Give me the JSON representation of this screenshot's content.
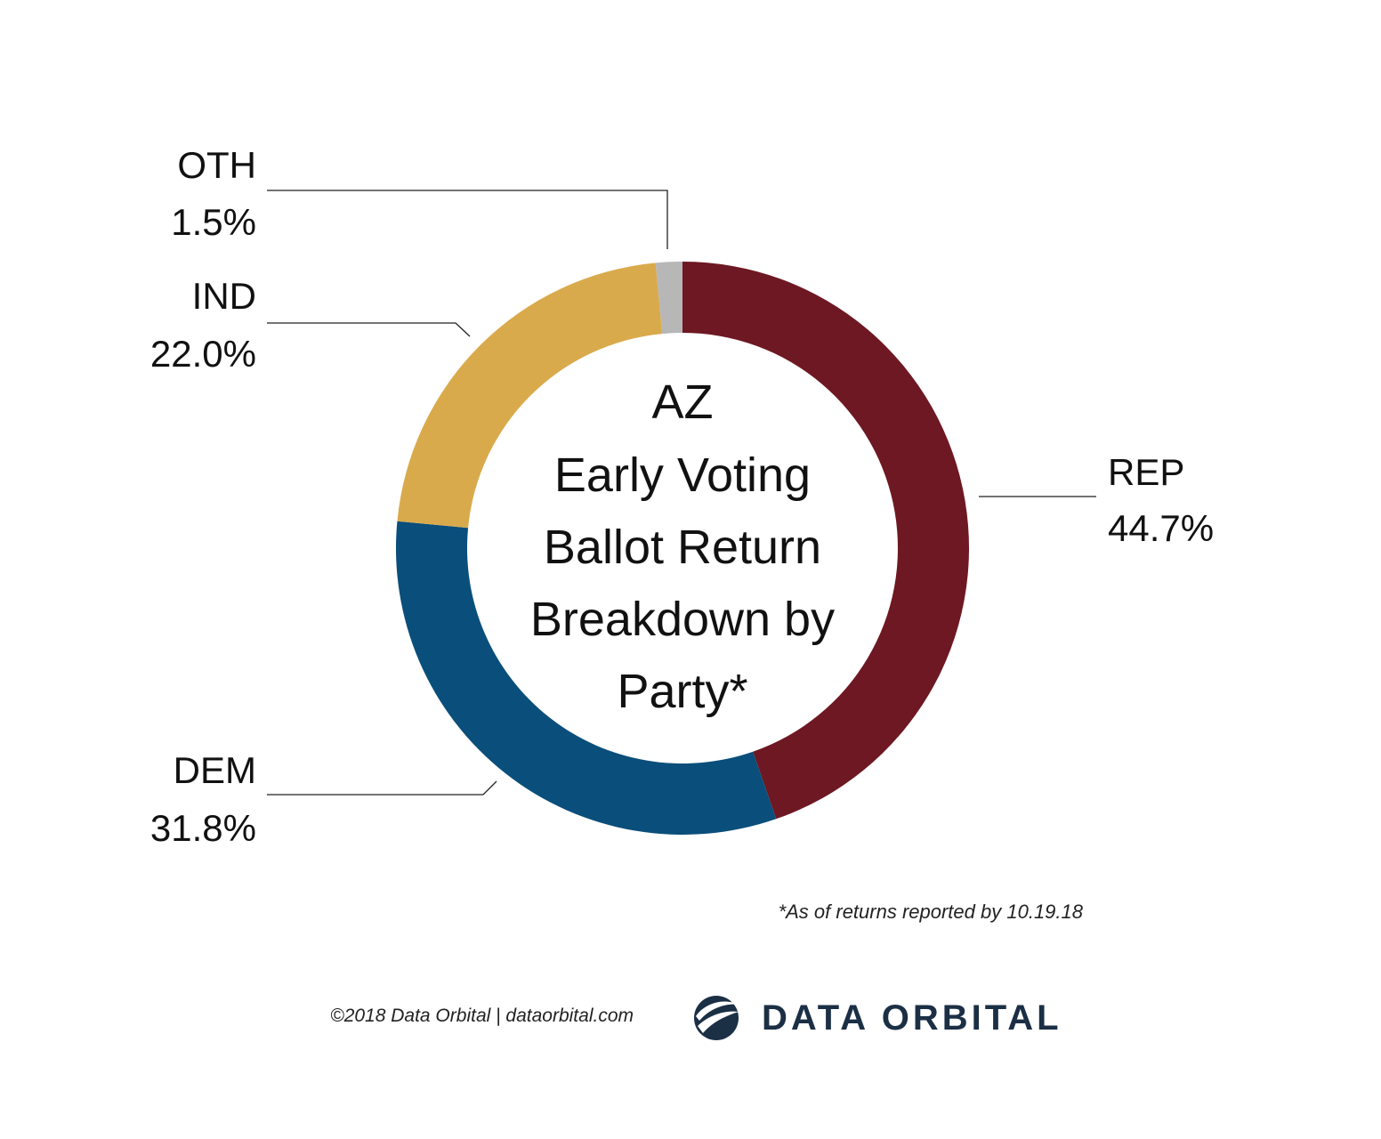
{
  "chart_data": {
    "type": "pie",
    "variant": "donut",
    "title_lines": [
      "AZ",
      "Early Voting",
      "Ballot Return",
      "Breakdown by",
      "Party*"
    ],
    "slices": [
      {
        "label": "REP",
        "value": 44.7,
        "display": "44.7%",
        "color": "#6e1823"
      },
      {
        "label": "DEM",
        "value": 31.8,
        "display": "31.8%",
        "color": "#0a4e7b"
      },
      {
        "label": "IND",
        "value": 22.0,
        "display": "22.0%",
        "color": "#d9aa4c"
      },
      {
        "label": "OTH",
        "value": 1.5,
        "display": "1.5%",
        "color": "#b7b7b7"
      }
    ],
    "start_angle": "12 o'clock",
    "direction": "clockwise"
  },
  "footnote": "*As of returns reported by 10.19.18",
  "copyright": "©2018 Data Orbital | dataorbital.com",
  "brand": {
    "name": "DATA ORBITAL",
    "logo_icon": "orbital-globe-icon",
    "color": "#1b2f45"
  }
}
